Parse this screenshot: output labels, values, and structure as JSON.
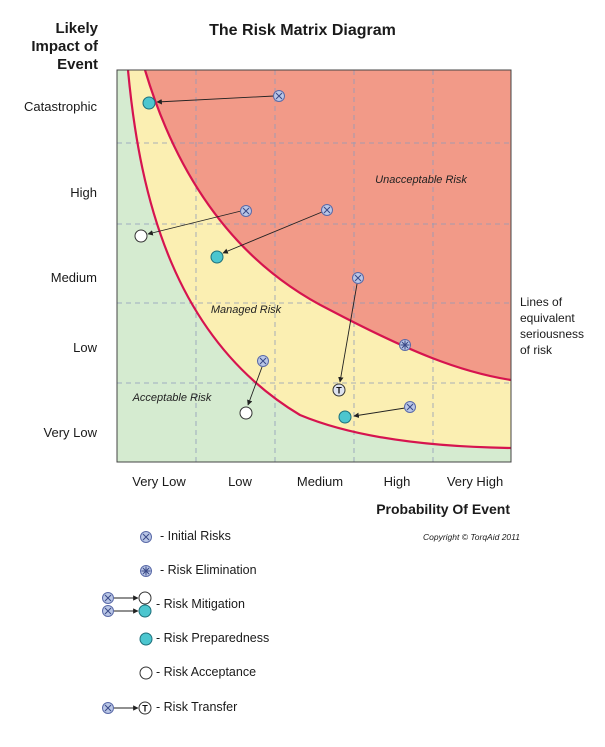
{
  "title": "The Risk Matrix Diagram",
  "y_axis": {
    "title_lines": [
      "Likely",
      "Impact of",
      "Event"
    ],
    "levels": [
      "Catastrophic",
      "High",
      "Medium",
      "Low",
      "Very Low"
    ]
  },
  "x_axis": {
    "title": "Probability Of Event",
    "levels": [
      "Very Low",
      "Low",
      "Medium",
      "High",
      "Very High"
    ]
  },
  "regions": {
    "unacceptable": "Unacceptable Risk",
    "managed": "Managed Risk",
    "acceptable": "Acceptable Risk"
  },
  "colors": {
    "unacceptable": "#f29a88",
    "managed": "#fbefb2",
    "acceptable": "#d5ebd0",
    "boundary": "#d6144f",
    "initial_fill": "#b9c6e6",
    "initial_stroke": "#5a6aa8",
    "preparedness": "#4cc6cf",
    "grid": "#8f9bb9"
  },
  "side_note": [
    "Lines of",
    "equivalent",
    "seriousness",
    "of risk"
  ],
  "copyright": "Copyright © TorqAid 2011",
  "legend": [
    {
      "icon": "initial-risk-icon",
      "label": "- Initial Risks"
    },
    {
      "icon": "risk-elimination-icon",
      "label": "- Risk Elimination"
    },
    {
      "icon": "risk-mitigation-icon",
      "label": "- Risk Mitigation"
    },
    {
      "icon": "risk-preparedness-icon",
      "label": "- Risk Preparedness"
    },
    {
      "icon": "risk-acceptance-icon",
      "label": "- Risk Acceptance"
    },
    {
      "icon": "risk-transfer-icon",
      "label": "- Risk Transfer"
    }
  ],
  "transfer_glyph": "T"
}
